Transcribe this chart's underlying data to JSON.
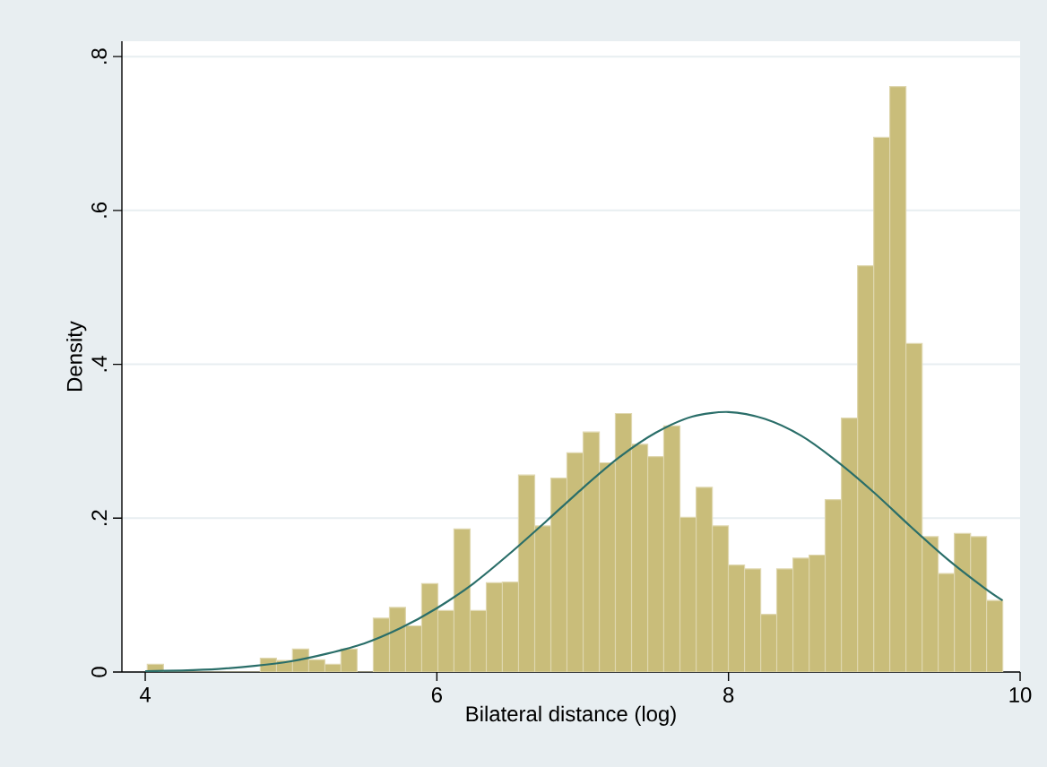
{
  "chart_data": {
    "type": "histogram",
    "xlabel": "Bilateral distance (log)",
    "ylabel": "Density",
    "xlim": [
      3.84,
      10
    ],
    "ylim": [
      0,
      0.82
    ],
    "xticks": [
      4,
      6,
      8,
      10
    ],
    "yticks": [
      0,
      {
        "value": 0.2,
        "label": ".2"
      },
      {
        "value": 0.4,
        "label": ".4"
      },
      {
        "value": 0.6,
        "label": ".6"
      },
      {
        "value": 0.8,
        "label": ".8"
      }
    ],
    "grid": "y",
    "series": [
      {
        "color": "#c9bd7a",
        "bins": [
          4.014,
          4.125,
          4.235,
          4.346,
          4.457,
          4.568,
          4.678,
          4.789,
          4.9,
          5.01,
          5.121,
          5.232,
          5.342,
          5.453,
          5.564,
          5.675,
          5.785,
          5.896,
          6.007,
          6.117,
          6.228,
          6.339,
          6.449,
          6.56,
          6.671,
          6.782,
          6.892,
          7.003,
          7.114,
          7.224,
          7.335,
          7.446,
          7.556,
          7.667,
          7.778,
          7.889,
          7.999,
          8.11,
          8.221,
          8.331,
          8.442,
          8.553,
          8.663,
          8.774,
          8.885,
          8.996,
          9.106,
          9.217,
          9.328,
          9.438,
          9.549,
          9.66,
          9.77,
          9.881
        ],
        "values": [
          0.01,
          0,
          0,
          0,
          0,
          0,
          0,
          0.018,
          0.015,
          0.03,
          0.016,
          0.01,
          0.03,
          0,
          0.07,
          0.084,
          0.06,
          0.115,
          0.08,
          0.186,
          0.08,
          0.116,
          0.117,
          0.256,
          0.19,
          0.252,
          0.285,
          0.312,
          0.272,
          0.336,
          0.296,
          0.28,
          0.32,
          0.201,
          0.24,
          0.19,
          0.139,
          0.134,
          0.075,
          0.134,
          0.148,
          0.152,
          0.224,
          0.33,
          0.528,
          0.695,
          0.761,
          0.427,
          0.176,
          0.128,
          0.18,
          0.176,
          0.093
        ]
      },
      {
        "type": "line",
        "color": "#2a6e69",
        "marker": "none",
        "line_style": "solid",
        "x": [
          4.0,
          4.25,
          4.5,
          4.75,
          5.0,
          5.25,
          5.5,
          5.75,
          6.0,
          6.25,
          6.5,
          6.75,
          7.0,
          7.25,
          7.5,
          7.75,
          8.0,
          8.25,
          8.5,
          8.75,
          9.0,
          9.25,
          9.5,
          9.75,
          9.88
        ],
        "values": [
          0.001,
          0.002,
          0.004,
          0.008,
          0.014,
          0.024,
          0.037,
          0.057,
          0.083,
          0.115,
          0.154,
          0.196,
          0.239,
          0.279,
          0.311,
          0.332,
          0.338,
          0.329,
          0.307,
          0.273,
          0.233,
          0.189,
          0.147,
          0.11,
          0.093
        ]
      }
    ]
  }
}
